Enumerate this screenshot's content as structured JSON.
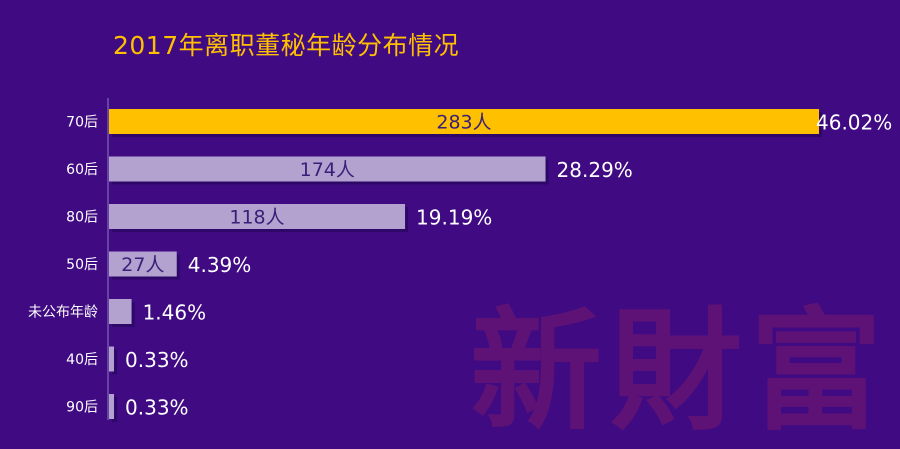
{
  "watermark": "新財富",
  "chart_data": {
    "type": "bar",
    "orientation": "horizontal",
    "title": "2017年离职董秘年龄分布情况",
    "categories": [
      "70后",
      "60后",
      "80后",
      "50后",
      "未公布年龄",
      "40后",
      "90后"
    ],
    "values": [
      283,
      174,
      118,
      27,
      9,
      2,
      2
    ],
    "value_labels": [
      "283人",
      "174人",
      "118人",
      "27人",
      "",
      "",
      ""
    ],
    "percent_labels": [
      "46.02%",
      "28.29%",
      "19.19%",
      "4.39%",
      "1.46%",
      "0.33%",
      "0.33%"
    ],
    "highlight_index": 0,
    "xlim": [
      0,
      283
    ],
    "grid": false,
    "colors": {
      "background": "#3f0a82",
      "highlight": "#ffc000",
      "bar": "#b3a2d0",
      "title": "#ffc000",
      "bar_text": "#3a1f78",
      "label_text": "#ffffff"
    }
  }
}
